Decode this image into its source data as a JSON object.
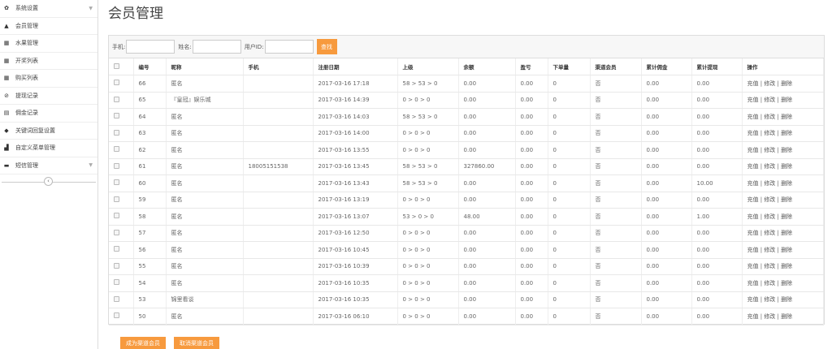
{
  "sidebar": {
    "items": [
      {
        "label": "系统设置",
        "icon": "gear-icon",
        "glyph": "✿",
        "chevron": true
      },
      {
        "label": "会员管理",
        "icon": "user-icon",
        "glyph": "▲"
      },
      {
        "label": "水果管理",
        "icon": "grid-icon",
        "glyph": "▦"
      },
      {
        "label": "开奖列表",
        "icon": "grid-icon",
        "glyph": "▦"
      },
      {
        "label": "购买列表",
        "icon": "grid-icon",
        "glyph": "▦"
      },
      {
        "label": "提现记录",
        "icon": "clock-icon",
        "glyph": "⊘"
      },
      {
        "label": "佣金记录",
        "icon": "list-icon",
        "glyph": "▤"
      },
      {
        "label": "关键词回复设置",
        "icon": "tags-icon",
        "glyph": "◆"
      },
      {
        "label": "自定义菜单管理",
        "icon": "bar-chart-icon",
        "glyph": "▟"
      },
      {
        "label": "短信管理",
        "icon": "comment-icon",
        "glyph": "▬",
        "chevron": true
      }
    ],
    "collapse": "‹"
  },
  "page": {
    "title": "会员管理"
  },
  "filter": {
    "phone_label": "手机:",
    "name_label": "姓名:",
    "uid_label": "用户ID:",
    "phone": "",
    "name": "",
    "uid": "",
    "search": "查找"
  },
  "table": {
    "headers": [
      "编号",
      "昵称",
      "手机",
      "注册日期",
      "上级",
      "余额",
      "盈亏",
      "下单量",
      "渠道会员",
      "累计佣金",
      "累计提现",
      "操作"
    ],
    "actions": [
      "充值",
      "修改",
      "删除"
    ],
    "rows": [
      [
        "66",
        "匿名",
        "",
        "2017-03-16 17:18",
        "58 > 53 > 0",
        "0.00",
        "0.00",
        "0",
        "否",
        "0.00",
        "0.00"
      ],
      [
        "65",
        "『皇冠』娱乐城",
        "",
        "2017-03-16 14:39",
        "0 > 0 > 0",
        "0.00",
        "0.00",
        "0",
        "否",
        "0.00",
        "0.00"
      ],
      [
        "64",
        "匿名",
        "",
        "2017-03-16 14:03",
        "58 > 53 > 0",
        "0.00",
        "0.00",
        "0",
        "否",
        "0.00",
        "0.00"
      ],
      [
        "63",
        "匿名",
        "",
        "2017-03-16 14:00",
        "0 > 0 > 0",
        "0.00",
        "0.00",
        "0",
        "否",
        "0.00",
        "0.00"
      ],
      [
        "62",
        "匿名",
        "",
        "2017-03-16 13:55",
        "0 > 0 > 0",
        "0.00",
        "0.00",
        "0",
        "否",
        "0.00",
        "0.00"
      ],
      [
        "61",
        "匿名",
        "18005151538",
        "2017-03-16 13:45",
        "58 > 53 > 0",
        "327860.00",
        "0.00",
        "0",
        "否",
        "0.00",
        "0.00"
      ],
      [
        "60",
        "匿名",
        "",
        "2017-03-16 13:43",
        "58 > 53 > 0",
        "0.00",
        "0.00",
        "0",
        "否",
        "0.00",
        "10.00"
      ],
      [
        "59",
        "匿名",
        "",
        "2017-03-16 13:19",
        "0 > 0 > 0",
        "0.00",
        "0.00",
        "0",
        "否",
        "0.00",
        "0.00"
      ],
      [
        "58",
        "匿名",
        "",
        "2017-03-16 13:07",
        "53 > 0 > 0",
        "48.00",
        "0.00",
        "0",
        "否",
        "0.00",
        "1.00"
      ],
      [
        "57",
        "匿名",
        "",
        "2017-03-16 12:50",
        "0 > 0 > 0",
        "0.00",
        "0.00",
        "0",
        "否",
        "0.00",
        "0.00"
      ],
      [
        "56",
        "匿名",
        "",
        "2017-03-16 10:45",
        "0 > 0 > 0",
        "0.00",
        "0.00",
        "0",
        "否",
        "0.00",
        "0.00"
      ],
      [
        "55",
        "匿名",
        "",
        "2017-03-16 10:39",
        "0 > 0 > 0",
        "0.00",
        "0.00",
        "0",
        "否",
        "0.00",
        "0.00"
      ],
      [
        "54",
        "匿名",
        "",
        "2017-03-16 10:35",
        "0 > 0 > 0",
        "0.00",
        "0.00",
        "0",
        "否",
        "0.00",
        "0.00"
      ],
      [
        "53",
        "锦里看谈",
        "",
        "2017-03-16 10:35",
        "0 > 0 > 0",
        "0.00",
        "0.00",
        "0",
        "否",
        "0.00",
        "0.00"
      ],
      [
        "50",
        "匿名",
        "",
        "2017-03-16 06:10",
        "0 > 0 > 0",
        "0.00",
        "0.00",
        "0",
        "否",
        "0.00",
        "0.00"
      ]
    ]
  },
  "bottom": {
    "make_channel": "成为渠道会员",
    "cancel_channel": "取消渠道会员"
  },
  "colors": {
    "accent": "#f79a3e"
  }
}
